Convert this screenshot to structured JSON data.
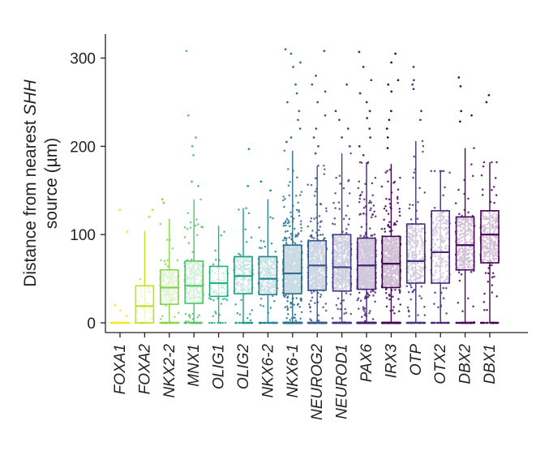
{
  "chart_data": {
    "type": "box-strip",
    "ylabel_parts": [
      "Distance from nearest ",
      "SHH",
      "source (µm)"
    ],
    "ylim": [
      -8,
      325
    ],
    "yticks": [
      0,
      100,
      200,
      300
    ],
    "grid": false,
    "categories": [
      "FOXA1",
      "FOXA2",
      "NKX2-2",
      "MNX1",
      "OLIG1",
      "OLIG2",
      "NKX6-2",
      "NKX6-1",
      "NEUROG2",
      "NEUROD1",
      "PAX6",
      "IRX3",
      "OTP",
      "OTX2",
      "DBX2",
      "DBX1"
    ],
    "colors": [
      "#fde725",
      "#c2df23",
      "#86d549",
      "#52c569",
      "#2ab07f",
      "#1e9b8a",
      "#25858e",
      "#2d708e",
      "#38588c",
      "#433e85",
      "#482173",
      "#440154",
      "#45307e",
      "#472a7a",
      "#46085c",
      "#440154"
    ],
    "point_counts": [
      40,
      45,
      260,
      300,
      75,
      230,
      300,
      1300,
      700,
      650,
      1100,
      800,
      320,
      230,
      340,
      320
    ],
    "series": [
      {
        "name": "FOXA1",
        "q1": 0,
        "median": 0,
        "q3": 0,
        "whisker_low": 0,
        "whisker_high": 0,
        "outliers": [
          128,
          103,
          20,
          14,
          8
        ]
      },
      {
        "name": "FOXA2",
        "q1": 0,
        "median": 19,
        "q3": 42,
        "whisker_low": 0,
        "whisker_high": 104,
        "outliers": [
          128,
          120
        ]
      },
      {
        "name": "NKX2-2",
        "q1": 21,
        "median": 40,
        "q3": 60,
        "whisker_low": 0,
        "whisker_high": 118,
        "outliers": [
          140,
          136
        ]
      },
      {
        "name": "MNX1",
        "q1": 22,
        "median": 42,
        "q3": 70,
        "whisker_low": 0,
        "whisker_high": 140,
        "outliers": [
          308,
          235,
          210,
          200,
          190,
          160,
          155
        ]
      },
      {
        "name": "OLIG1",
        "q1": 30,
        "median": 45,
        "q3": 64,
        "whisker_low": 0,
        "whisker_high": 110,
        "outliers": []
      },
      {
        "name": "OLIG2",
        "q1": 33,
        "median": 53,
        "q3": 75,
        "whisker_low": 0,
        "whisker_high": 130,
        "outliers": [
          197,
          155
        ]
      },
      {
        "name": "NKX6-2",
        "q1": 32,
        "median": 50,
        "q3": 75,
        "whisker_low": 0,
        "whisker_high": 140,
        "outliers": [
          160,
          150
        ]
      },
      {
        "name": "NKX6-1",
        "q1": 33,
        "median": 56,
        "q3": 88,
        "whisker_low": 0,
        "whisker_high": 195,
        "outliers": [
          310,
          305,
          295,
          290,
          270,
          260,
          250,
          240,
          230,
          220,
          210,
          205
        ]
      },
      {
        "name": "NEUROG2",
        "q1": 37,
        "median": 65,
        "q3": 93,
        "whisker_low": 0,
        "whisker_high": 178,
        "outliers": [
          308,
          280,
          270,
          262,
          250,
          235,
          220,
          210,
          200,
          192
        ]
      },
      {
        "name": "NEUROD1",
        "q1": 36,
        "median": 63,
        "q3": 100,
        "whisker_low": 0,
        "whisker_high": 192,
        "outliers": [
          270,
          240,
          230,
          220,
          210,
          200
        ]
      },
      {
        "name": "PAX6",
        "q1": 38,
        "median": 65,
        "q3": 96,
        "whisker_low": 0,
        "whisker_high": 182,
        "outliers": [
          307,
          290,
          275,
          260,
          250,
          240,
          232,
          220,
          210,
          200,
          190
        ]
      },
      {
        "name": "IRX3",
        "q1": 40,
        "median": 67,
        "q3": 98,
        "whisker_low": 0,
        "whisker_high": 180,
        "outliers": [
          305,
          295,
          275,
          270,
          262,
          240,
          230,
          220,
          210,
          198
        ]
      },
      {
        "name": "OTP",
        "q1": 45,
        "median": 70,
        "q3": 112,
        "whisker_low": 0,
        "whisker_high": 206,
        "outliers": [
          290,
          275,
          270,
          265,
          240,
          230
        ]
      },
      {
        "name": "OTX2",
        "q1": 45,
        "median": 80,
        "q3": 127,
        "whisker_low": 0,
        "whisker_high": 172,
        "outliers": []
      },
      {
        "name": "DBX2",
        "q1": 60,
        "median": 88,
        "q3": 120,
        "whisker_low": 0,
        "whisker_high": 198,
        "outliers": [
          278,
          268,
          240,
          235,
          228
        ]
      },
      {
        "name": "DBX1",
        "q1": 68,
        "median": 100,
        "q3": 127,
        "whisker_low": 0,
        "whisker_high": 182,
        "outliers": [
          258,
          250
        ]
      }
    ]
  }
}
